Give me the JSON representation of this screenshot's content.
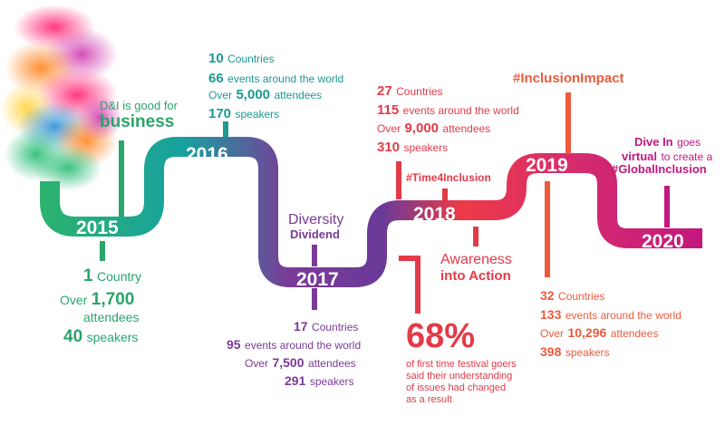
{
  "timeline": {
    "years": [
      "2015",
      "2016",
      "2017",
      "2018",
      "2019",
      "2020"
    ],
    "y2015": {
      "intro_small": "D&I is good for",
      "intro_bold": "business",
      "countries_num": "1",
      "countries_label": "Country",
      "attendees_prefix": "Over",
      "attendees_num": "1,700",
      "attendees_label": "attendees",
      "speakers_num": "40",
      "speakers_label": "speakers"
    },
    "y2016": {
      "countries_num": "10",
      "countries_label": "Countries",
      "events_num": "66",
      "events_label": "events around the world",
      "attendees_prefix": "Over",
      "attendees_num": "5,000",
      "attendees_label": "attendees",
      "speakers_num": "170",
      "speakers_label": "speakers"
    },
    "y2017": {
      "theme_line1": "Diversity",
      "theme_line2": "Dividend",
      "countries_num": "17",
      "countries_label": "Countries",
      "events_num": "95",
      "events_label": "events around the world",
      "attendees_prefix": "Over",
      "attendees_num": "7,500",
      "attendees_label": "attendees",
      "speakers_num": "291",
      "speakers_label": "speakers"
    },
    "y2018": {
      "countries_num": "27",
      "countries_label": "Countries",
      "events_num": "115",
      "events_label": "events around the world",
      "attendees_prefix": "Over",
      "attendees_num": "9,000",
      "attendees_label": "attendees",
      "speakers_num": "310",
      "speakers_label": "speakers",
      "hashtag": "#Time4Inclusion",
      "theme_line1": "Awareness",
      "theme_line2": "into Action",
      "stat_value": "68%",
      "stat_line1": "of first time festival goers",
      "stat_line2": "said their understanding",
      "stat_line3": "of issues had changed",
      "stat_line4": "as a result"
    },
    "y2019": {
      "hashtag": "#InclusionImpact",
      "countries_num": "32",
      "countries_label": "Countries",
      "events_num": "133",
      "events_label": "events around the world",
      "attendees_prefix": "Over",
      "attendees_num": "10,296",
      "attendees_label": "attendees",
      "speakers_num": "398",
      "speakers_label": "speakers"
    },
    "y2020": {
      "l1_bold": "Dive In",
      "l1_rest": "goes",
      "l2_bold": "virtual",
      "l2_rest": "to create a",
      "l3_bold": "#GlobalInclusion"
    }
  },
  "colors": {
    "green": "#2aa56b",
    "teal": "#1a9a90",
    "purple": "#7a3b97",
    "red": "#e33a48",
    "orange": "#ee5a3c",
    "magenta": "#c2187e"
  }
}
